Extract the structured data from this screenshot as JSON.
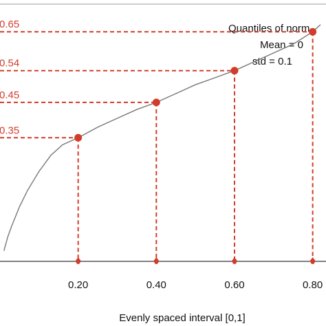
{
  "chart_data": {
    "type": "line",
    "xlabel": "Evenly spaced interval [0,1]",
    "x_tick_labels": [
      "0.20",
      "0.40",
      "0.60",
      "0.80"
    ],
    "x_ticks": [
      0.2,
      0.4,
      0.6,
      0.8
    ],
    "xlim": [
      0.0,
      0.82
    ],
    "ylim": [
      0.0,
      0.74
    ],
    "annotation_lines": [
      "Quantiles of norm",
      "Mean = 0",
      "std =  0.1"
    ],
    "curve": {
      "x": [
        0.01,
        0.02,
        0.03,
        0.05,
        0.07,
        0.1,
        0.13,
        0.16,
        0.2,
        0.25,
        0.3,
        0.35,
        0.4,
        0.45,
        0.5,
        0.55,
        0.6,
        0.65,
        0.7,
        0.75,
        0.8,
        0.82
      ],
      "y": [
        0.03,
        0.07,
        0.1,
        0.155,
        0.2,
        0.255,
        0.3,
        0.33,
        0.35,
        0.38,
        0.405,
        0.43,
        0.45,
        0.475,
        0.5,
        0.52,
        0.54,
        0.565,
        0.59,
        0.615,
        0.65,
        0.67
      ]
    },
    "points": {
      "x": [
        0.2,
        0.4,
        0.6,
        0.8
      ],
      "y": [
        0.35,
        0.45,
        0.54,
        0.65
      ],
      "labels": [
        "0.35",
        "0.45",
        "0.54",
        "0.65"
      ]
    },
    "colors": {
      "points": "#d23c2a",
      "curve": "#777777",
      "axis": "#555555"
    }
  }
}
